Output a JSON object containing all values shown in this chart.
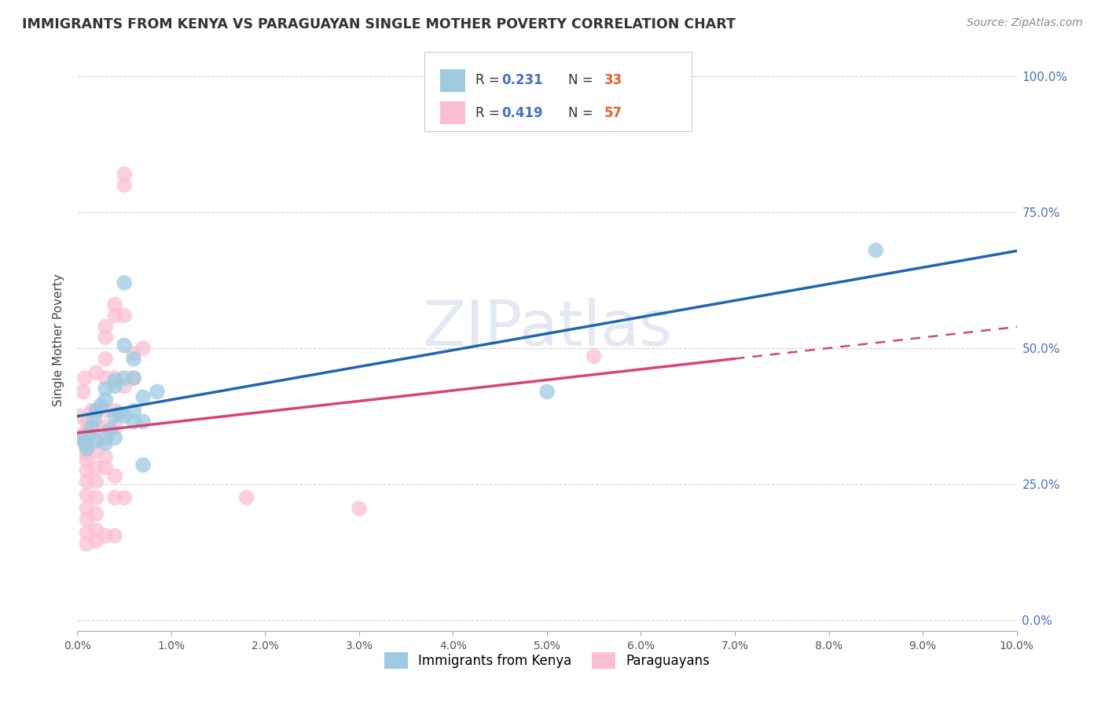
{
  "title": "IMMIGRANTS FROM KENYA VS PARAGUAYAN SINGLE MOTHER POVERTY CORRELATION CHART",
  "source": "Source: ZipAtlas.com",
  "ylabel": "Single Mother Poverty",
  "legend_blue_label": "Immigrants from Kenya",
  "legend_pink_label": "Paraguayans",
  "r_blue": "0.231",
  "n_blue": "33",
  "r_pink": "0.419",
  "n_pink": "57",
  "blue_color": "#9ecae1",
  "pink_color": "#fcbfd2",
  "blue_line_color": "#2166ac",
  "pink_line_color": "#d6447a",
  "legend_text_color": "#4472c4",
  "legend_n_color": "#e8602c",
  "xlim": [
    0.0,
    0.1
  ],
  "ylim": [
    -0.02,
    1.05
  ],
  "watermark": "ZIPatlas",
  "blue_scatter": [
    [
      0.0005,
      0.335
    ],
    [
      0.0008,
      0.325
    ],
    [
      0.001,
      0.315
    ],
    [
      0.0012,
      0.34
    ],
    [
      0.0015,
      0.355
    ],
    [
      0.0018,
      0.37
    ],
    [
      0.002,
      0.33
    ],
    [
      0.002,
      0.385
    ],
    [
      0.0025,
      0.395
    ],
    [
      0.003,
      0.325
    ],
    [
      0.003,
      0.335
    ],
    [
      0.003,
      0.405
    ],
    [
      0.003,
      0.425
    ],
    [
      0.0035,
      0.35
    ],
    [
      0.004,
      0.375
    ],
    [
      0.004,
      0.44
    ],
    [
      0.004,
      0.43
    ],
    [
      0.004,
      0.335
    ],
    [
      0.0045,
      0.38
    ],
    [
      0.005,
      0.62
    ],
    [
      0.005,
      0.445
    ],
    [
      0.005,
      0.505
    ],
    [
      0.005,
      0.375
    ],
    [
      0.006,
      0.48
    ],
    [
      0.006,
      0.445
    ],
    [
      0.006,
      0.365
    ],
    [
      0.006,
      0.385
    ],
    [
      0.007,
      0.41
    ],
    [
      0.007,
      0.285
    ],
    [
      0.007,
      0.365
    ],
    [
      0.0085,
      0.42
    ],
    [
      0.05,
      0.42
    ],
    [
      0.085,
      0.68
    ]
  ],
  "pink_scatter": [
    [
      0.0003,
      0.375
    ],
    [
      0.0005,
      0.34
    ],
    [
      0.0006,
      0.42
    ],
    [
      0.0007,
      0.33
    ],
    [
      0.0008,
      0.445
    ],
    [
      0.001,
      0.365
    ],
    [
      0.001,
      0.35
    ],
    [
      0.001,
      0.32
    ],
    [
      0.001,
      0.305
    ],
    [
      0.001,
      0.295
    ],
    [
      0.001,
      0.275
    ],
    [
      0.001,
      0.255
    ],
    [
      0.001,
      0.23
    ],
    [
      0.001,
      0.205
    ],
    [
      0.001,
      0.185
    ],
    [
      0.001,
      0.16
    ],
    [
      0.001,
      0.14
    ],
    [
      0.0015,
      0.385
    ],
    [
      0.002,
      0.455
    ],
    [
      0.002,
      0.385
    ],
    [
      0.002,
      0.355
    ],
    [
      0.002,
      0.33
    ],
    [
      0.002,
      0.31
    ],
    [
      0.002,
      0.28
    ],
    [
      0.002,
      0.255
    ],
    [
      0.002,
      0.225
    ],
    [
      0.002,
      0.195
    ],
    [
      0.002,
      0.165
    ],
    [
      0.002,
      0.145
    ],
    [
      0.003,
      0.54
    ],
    [
      0.003,
      0.52
    ],
    [
      0.003,
      0.48
    ],
    [
      0.003,
      0.445
    ],
    [
      0.003,
      0.385
    ],
    [
      0.003,
      0.355
    ],
    [
      0.003,
      0.3
    ],
    [
      0.003,
      0.28
    ],
    [
      0.003,
      0.155
    ],
    [
      0.004,
      0.58
    ],
    [
      0.004,
      0.56
    ],
    [
      0.004,
      0.445
    ],
    [
      0.004,
      0.385
    ],
    [
      0.004,
      0.355
    ],
    [
      0.004,
      0.265
    ],
    [
      0.004,
      0.225
    ],
    [
      0.004,
      0.155
    ],
    [
      0.005,
      0.82
    ],
    [
      0.005,
      0.8
    ],
    [
      0.005,
      0.56
    ],
    [
      0.005,
      0.43
    ],
    [
      0.005,
      0.225
    ],
    [
      0.006,
      0.49
    ],
    [
      0.006,
      0.445
    ],
    [
      0.007,
      0.5
    ],
    [
      0.055,
      0.485
    ],
    [
      0.018,
      0.225
    ],
    [
      0.03,
      0.205
    ]
  ]
}
